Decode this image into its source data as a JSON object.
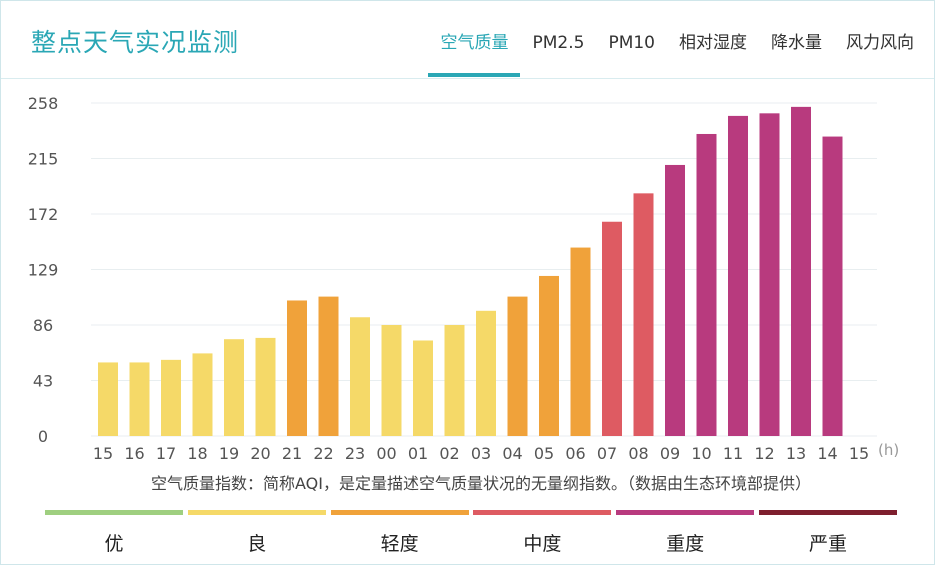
{
  "header": {
    "title": "整点天气实况监测",
    "tabs": [
      "空气质量",
      "PM2.5",
      "PM10",
      "相对湿度",
      "降水量",
      "风力风向"
    ],
    "active_tab": 0
  },
  "description": "空气质量指数：简称AQI，是定量描述空气质量状况的无量纲指数。（数据由生态环境部提供）",
  "legend": [
    {
      "label": "优",
      "color": "#9fcf80"
    },
    {
      "label": "良",
      "color": "#f5d968"
    },
    {
      "label": "轻度",
      "color": "#f0a23a"
    },
    {
      "label": "中度",
      "color": "#de5b62"
    },
    {
      "label": "重度",
      "color": "#b83a7e"
    },
    {
      "label": "严重",
      "color": "#7e1f2e"
    }
  ],
  "chart_data": {
    "type": "bar",
    "x_unit": "(h)",
    "categories": [
      "15",
      "16",
      "17",
      "18",
      "19",
      "20",
      "21",
      "22",
      "23",
      "00",
      "01",
      "02",
      "03",
      "04",
      "05",
      "06",
      "07",
      "08",
      "09",
      "10",
      "11",
      "12",
      "13",
      "14",
      "15"
    ],
    "values": [
      57,
      57,
      59,
      64,
      75,
      76,
      105,
      108,
      92,
      86,
      74,
      86,
      97,
      108,
      124,
      146,
      166,
      188,
      210,
      234,
      248,
      250,
      255,
      232,
      null
    ],
    "colors": [
      "#f5d968",
      "#f5d968",
      "#f5d968",
      "#f5d968",
      "#f5d968",
      "#f5d968",
      "#f0a23a",
      "#f0a23a",
      "#f5d968",
      "#f5d968",
      "#f5d968",
      "#f5d968",
      "#f5d968",
      "#f0a23a",
      "#f0a23a",
      "#f0a23a",
      "#de5b62",
      "#de5b62",
      "#b83a7e",
      "#b83a7e",
      "#b83a7e",
      "#b83a7e",
      "#b83a7e",
      "#b83a7e",
      ""
    ],
    "yticks": [
      0,
      43,
      86,
      129,
      172,
      215,
      258
    ],
    "ylim": [
      0,
      258
    ],
    "grid": true
  }
}
